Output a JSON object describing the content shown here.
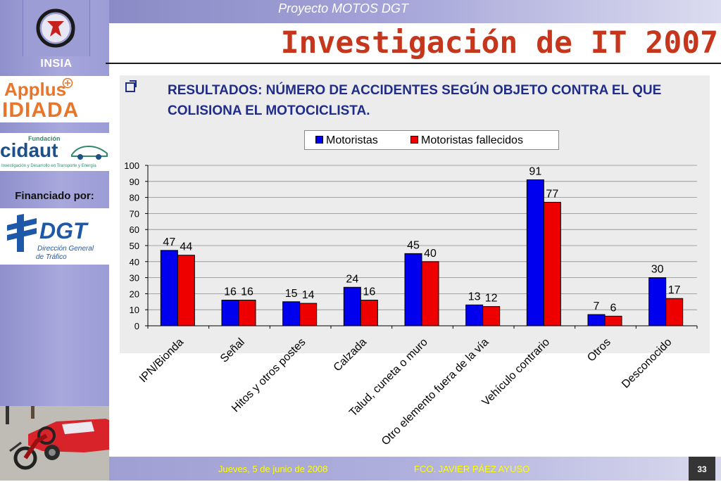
{
  "header": {
    "project": "Proyecto MOTOS DGT",
    "title": "Investigación de IT 2007"
  },
  "sidebar": {
    "insia": "INSIA",
    "applus": "Applus",
    "idiada": "IDIADA",
    "cidaut_fundacion": "Fundación",
    "cidaut": "cidaut",
    "cidaut_tagline": "Investigación y Desarrollo en Transporte y Energía",
    "financiado": "Financiado por:",
    "dgt": "DGT",
    "dgt_line1": "Dirección General",
    "dgt_line2": "de Tráfico"
  },
  "slide": {
    "heading": "RESULTADOS: NÚMERO DE ACCIDENTES SEGÚN OBJETO CONTRA EL QUE COLISIONA EL MOTOCICLISTA."
  },
  "footer": {
    "date": "Jueves, 5 de junio de 2008",
    "author": "FCO. JAVIER PÁEZ AYUSO",
    "page": "33"
  },
  "colors": {
    "series1": "#0000ee",
    "series2": "#ee0000",
    "title": "#c5361c",
    "heading": "#1f2c8a"
  },
  "chart_data": {
    "type": "bar",
    "categories": [
      "IPN/Bionda",
      "Señal",
      "Hitos y otros postes",
      "Calzada",
      "Talud, cuneta o muro",
      "Otro elemento fuera de la vía",
      "Vehículo contrario",
      "Otros",
      "Desconocido"
    ],
    "series": [
      {
        "name": "Motoristas",
        "values": [
          47,
          16,
          15,
          24,
          45,
          13,
          91,
          7,
          30
        ]
      },
      {
        "name": "Motoristas fallecidos",
        "values": [
          44,
          16,
          14,
          16,
          40,
          12,
          77,
          6,
          17
        ]
      }
    ],
    "ylim": [
      0,
      100
    ],
    "yticks": [
      0,
      10,
      20,
      30,
      40,
      50,
      60,
      70,
      80,
      90,
      100
    ],
    "legend": "top-center",
    "grid": true
  }
}
